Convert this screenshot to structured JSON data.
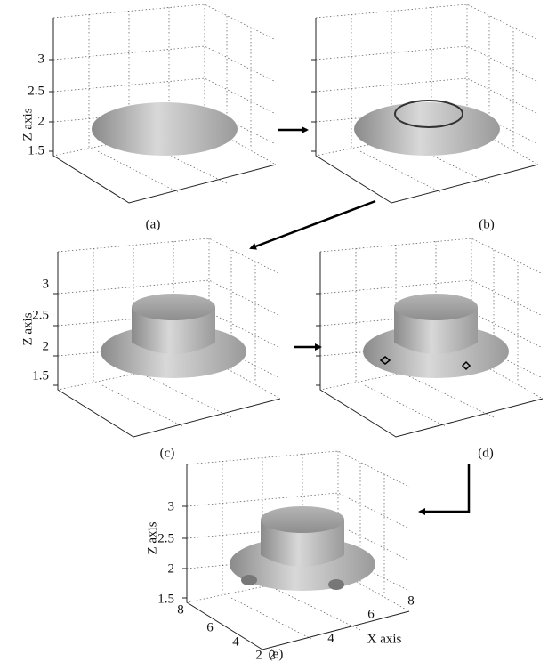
{
  "panels": [
    {
      "label": "(a)",
      "z_label": "Z axis",
      "z_ticks": [
        "1.5",
        "2",
        "2.5",
        "3"
      ]
    },
    {
      "label": "(b)"
    },
    {
      "label": "(c)",
      "z_label": "Z axis",
      "z_ticks": [
        "1.5",
        "2",
        "2.5",
        "3"
      ]
    },
    {
      "label": "(d)"
    },
    {
      "label": "(e)",
      "z_label": "Z axis",
      "z_ticks": [
        "1.5",
        "2",
        "2.5",
        "3"
      ],
      "y_ticks": [
        "2",
        "4",
        "6",
        "8"
      ],
      "x_ticks": [
        "2",
        "4",
        "6",
        "8"
      ],
      "x_label": "X axis"
    }
  ]
}
